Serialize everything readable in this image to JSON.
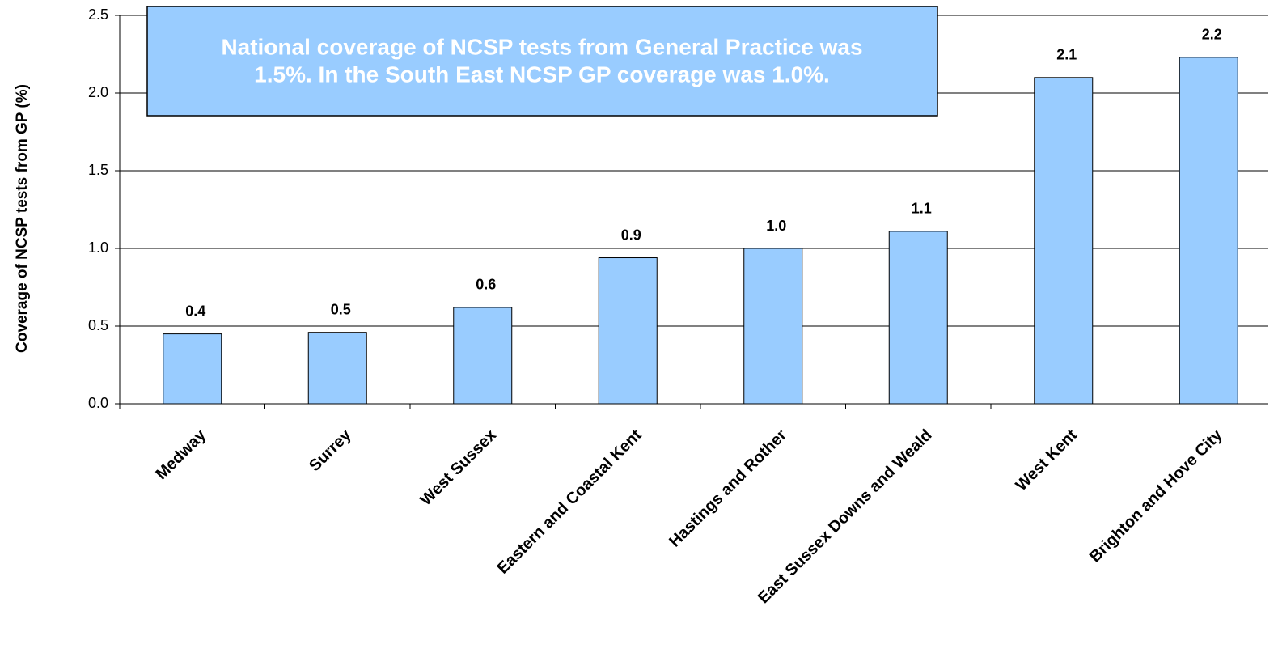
{
  "chart_data": {
    "type": "bar",
    "y_label": "Coverage of NCSP tests from GP (%)",
    "annotation": [
      "National coverage of NCSP tests from General Practice was",
      "1.5%. In the South East NCSP GP coverage was 1.0%."
    ],
    "categories": [
      "Medway",
      "Surrey",
      "West Sussex",
      "Eastern and Coastal Kent",
      "Hastings and Rother",
      "East Sussex Downs and Weald",
      "West Kent",
      "Brighton and Hove City"
    ],
    "values": [
      0.45,
      0.46,
      0.62,
      0.94,
      1.0,
      1.11,
      2.1,
      2.23
    ],
    "value_labels": [
      "0.4",
      "0.5",
      "0.6",
      "0.9",
      "1.0",
      "1.1",
      "2.1",
      "2.2"
    ],
    "color": "#99ccff",
    "ylim": [
      0,
      2.5
    ],
    "yticks": [
      {
        "value": 0,
        "label": "0.0"
      },
      0.5,
      {
        "value": 1,
        "label": "1.0"
      },
      1.5,
      {
        "value": 2,
        "label": "2.0"
      },
      2.5
    ],
    "grid": true
  }
}
